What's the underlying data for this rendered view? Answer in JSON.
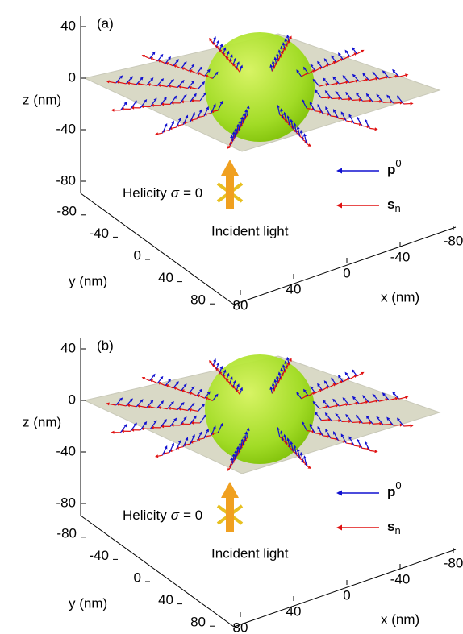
{
  "panels": [
    {
      "label": "(a)",
      "z_axis": {
        "label": "z (nm)",
        "ticks": [
          40,
          0,
          -40,
          -80
        ]
      },
      "y_axis": {
        "label": "y (nm)",
        "ticks": [
          -80,
          -40,
          0,
          40,
          80
        ]
      },
      "x_axis": {
        "label": "x (nm)",
        "ticks": [
          -80,
          -40,
          0,
          40,
          80
        ]
      },
      "helicity": [
        "Helicity",
        "σ",
        "= 0"
      ],
      "incident": "Incident light",
      "legend": [
        {
          "name": "p",
          "mark": "0",
          "color": "#1010d0"
        },
        {
          "name": "s",
          "mark": "n",
          "color": "#e01010"
        }
      ]
    },
    {
      "label": "(b)",
      "z_axis": {
        "label": "z (nm)",
        "ticks": [
          40,
          0,
          -40,
          -80
        ]
      },
      "y_axis": {
        "label": "y (nm)",
        "ticks": [
          -80,
          -40,
          0,
          40,
          80
        ]
      },
      "x_axis": {
        "label": "x (nm)",
        "ticks": [
          -80,
          -40,
          0,
          40,
          80
        ]
      },
      "helicity": [
        "Helicity",
        "σ",
        "= 0"
      ],
      "incident": "Incident light",
      "legend": [
        {
          "name": "p",
          "mark": "0",
          "color": "#1010d0"
        },
        {
          "name": "s",
          "mark": "n",
          "color": "#e01010"
        }
      ]
    }
  ]
}
